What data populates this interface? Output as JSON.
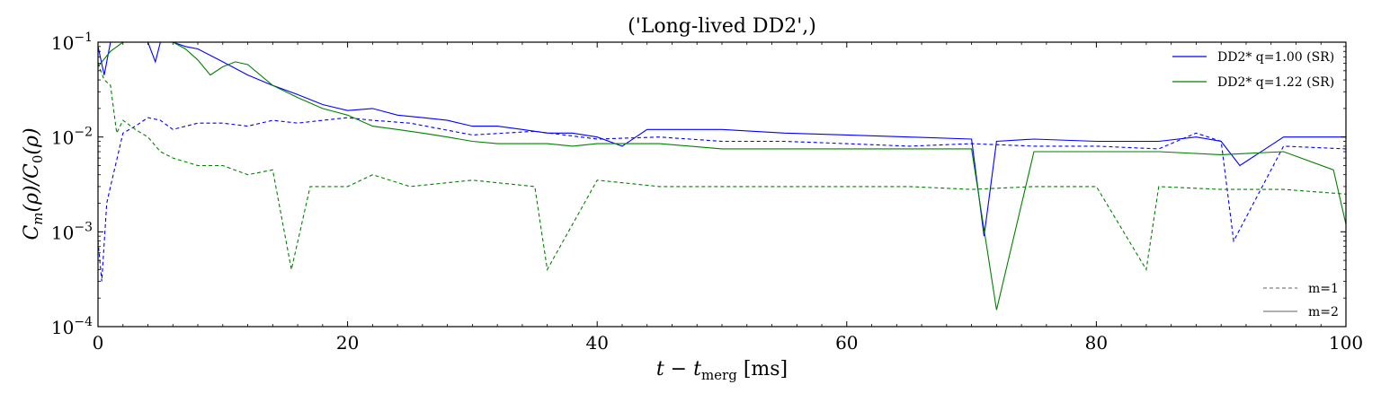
{
  "chart_data": {
    "type": "line",
    "title": "('Long-lived DD2',)",
    "xlabel": "t − t_merg [ms]",
    "xlabel_parts": {
      "main": "t − t",
      "subscript": "merg",
      "unit": " [ms]"
    },
    "ylabel": "C_m(ρ)/C_0(ρ)",
    "ylabel_parts": {
      "c": "C",
      "m": "m",
      "mid": "(ρ)/C",
      "zero": "0",
      "end": "(ρ)"
    },
    "xlim": [
      0,
      100
    ],
    "ylim": [
      0.0001,
      0.1
    ],
    "yscale": "log",
    "xticks": [
      0,
      20,
      40,
      60,
      80,
      100
    ],
    "xtick_labels": [
      "0",
      "20",
      "40",
      "60",
      "80",
      "100"
    ],
    "ytick_labels": [
      {
        "value": 0.1,
        "base": "10",
        "exp": "−1"
      },
      {
        "value": 0.01,
        "base": "10",
        "exp": "−2"
      },
      {
        "value": 0.001,
        "base": "10",
        "exp": "−3"
      },
      {
        "value": 0.0001,
        "base": "10",
        "exp": "−4"
      }
    ],
    "grid": false,
    "legend_placement": "top-right",
    "style_legend_placement": "bottom-right",
    "legend": [
      {
        "label": "DD2* q=1.00 (SR)",
        "color": "#0000ff"
      },
      {
        "label": "DD2* q=1.22 (SR)",
        "color": "#008000"
      }
    ],
    "style_legend": [
      {
        "label": "m=1",
        "dash": "dashed",
        "color": "#808080"
      },
      {
        "label": "m=2",
        "dash": "solid",
        "color": "#808080"
      }
    ],
    "series": [
      {
        "name": "DD2* q=1.00 (SR)",
        "mode": "m=2",
        "color": "#0000ff",
        "dash": "solid",
        "x": [
          0,
          0.5,
          1,
          2,
          3,
          4,
          4.6,
          5,
          6,
          7,
          8,
          10,
          12,
          14,
          16,
          18,
          20,
          22,
          24,
          26,
          28,
          30,
          32,
          34,
          36,
          38,
          40,
          42,
          44,
          46,
          48,
          50,
          55,
          60,
          65,
          70,
          71,
          72,
          75,
          80,
          85,
          88,
          90,
          91.5,
          95,
          100
        ],
        "y": [
          0.09,
          0.045,
          0.1,
          0.1,
          0.1,
          0.1,
          0.062,
          0.1,
          0.1,
          0.09,
          0.085,
          0.062,
          0.045,
          0.035,
          0.028,
          0.022,
          0.019,
          0.02,
          0.017,
          0.016,
          0.015,
          0.013,
          0.013,
          0.012,
          0.011,
          0.011,
          0.01,
          0.008,
          0.012,
          0.012,
          0.012,
          0.012,
          0.011,
          0.0105,
          0.01,
          0.0095,
          0.0009,
          0.009,
          0.0095,
          0.009,
          0.009,
          0.01,
          0.009,
          0.005,
          0.01,
          0.01
        ]
      },
      {
        "name": "DD2* q=1.00 (SR)",
        "mode": "m=1",
        "color": "#0000ff",
        "dash": "dashed",
        "x": [
          0,
          0.3,
          0.7,
          1,
          2,
          3,
          4,
          5,
          6,
          8,
          10,
          12,
          14,
          16,
          18,
          20,
          22,
          25,
          30,
          35,
          40,
          45,
          50,
          55,
          60,
          65,
          70,
          75,
          80,
          85,
          88,
          90,
          91,
          95,
          100
        ],
        "y": [
          0.0008,
          0.0003,
          0.002,
          0.003,
          0.011,
          0.013,
          0.016,
          0.015,
          0.012,
          0.014,
          0.014,
          0.013,
          0.015,
          0.014,
          0.015,
          0.016,
          0.015,
          0.014,
          0.0105,
          0.0115,
          0.0095,
          0.01,
          0.009,
          0.009,
          0.0085,
          0.008,
          0.0085,
          0.008,
          0.008,
          0.0075,
          0.011,
          0.009,
          0.0008,
          0.008,
          0.0075
        ]
      },
      {
        "name": "DD2* q=1.22 (SR)",
        "mode": "m=2",
        "color": "#008000",
        "dash": "solid",
        "x": [
          0,
          1,
          2,
          4,
          6,
          7,
          8,
          9,
          10,
          11,
          12,
          14,
          16,
          18,
          20,
          22,
          24,
          26,
          28,
          30,
          32,
          34,
          36,
          38,
          40,
          45,
          50,
          55,
          60,
          65,
          70,
          72,
          75,
          80,
          85,
          90,
          95,
          99,
          100
        ],
        "y": [
          0.055,
          0.08,
          0.1,
          0.1,
          0.1,
          0.085,
          0.065,
          0.045,
          0.055,
          0.062,
          0.058,
          0.035,
          0.026,
          0.02,
          0.017,
          0.013,
          0.012,
          0.011,
          0.01,
          0.009,
          0.0085,
          0.0085,
          0.0085,
          0.008,
          0.0085,
          0.0085,
          0.0075,
          0.0075,
          0.0075,
          0.0075,
          0.0075,
          0.00015,
          0.007,
          0.007,
          0.007,
          0.0065,
          0.007,
          0.0045,
          0.0012
        ]
      },
      {
        "name": "DD2* q=1.22 (SR)",
        "mode": "m=1",
        "color": "#008000",
        "dash": "dashed",
        "x": [
          0,
          0.5,
          1,
          1.5,
          2,
          3,
          4,
          5,
          6,
          8,
          10,
          12,
          14,
          15.5,
          17,
          20,
          22,
          25,
          30,
          35,
          36,
          40,
          45,
          50,
          55,
          60,
          65,
          70,
          75,
          80,
          84,
          85,
          90,
          95,
          100
        ],
        "y": [
          0.06,
          0.04,
          0.035,
          0.011,
          0.015,
          0.012,
          0.01,
          0.007,
          0.006,
          0.005,
          0.005,
          0.004,
          0.0045,
          0.0004,
          0.003,
          0.003,
          0.004,
          0.003,
          0.0035,
          0.003,
          0.0004,
          0.0035,
          0.003,
          0.003,
          0.003,
          0.003,
          0.003,
          0.0028,
          0.003,
          0.003,
          0.0004,
          0.003,
          0.0028,
          0.0028,
          0.0025
        ]
      }
    ]
  }
}
